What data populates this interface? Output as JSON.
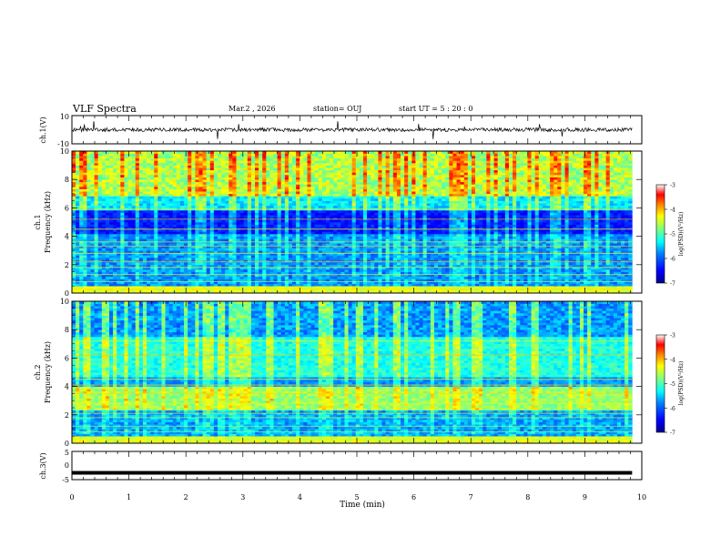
{
  "header": {
    "title": "VLF Spectra",
    "date": "Mar.2 , 2026",
    "station": "station= OUJ",
    "start": "start UT = 5 : 20 : 0"
  },
  "chart_data": [
    {
      "type": "line",
      "ylabel": "ch.1(V)",
      "yticks": [
        "10",
        "-10"
      ],
      "ylim": [
        -10,
        10
      ],
      "baseline": 0,
      "noise_amplitude": 1.3,
      "xlim": [
        0,
        10
      ]
    },
    {
      "type": "heatmap",
      "ylabel": "ch.1",
      "ylabel2": "Frequency (kHz)",
      "yticks": [
        "0",
        "2",
        "4",
        "6",
        "8",
        "10"
      ],
      "ylim": [
        0,
        10
      ],
      "xlim": [
        0,
        10
      ],
      "data_end_min": 9.83,
      "colorbar": {
        "label": "log(PSD)(V²/Hz)",
        "ticks": [
          "-3",
          "-4",
          "-5",
          "-6",
          "-7"
        ],
        "range": [
          -7,
          -3
        ]
      }
    },
    {
      "type": "heatmap",
      "ylabel": "ch.2",
      "ylabel2": "Frequency (kHz)",
      "yticks": [
        "0",
        "2",
        "4",
        "6",
        "8",
        "10"
      ],
      "ylim": [
        0,
        10
      ],
      "xlim": [
        0,
        10
      ],
      "data_end_min": 9.83,
      "colorbar": {
        "label": "log(PSD)(V²/Hz)",
        "ticks": [
          "-3",
          "-4",
          "-5",
          "-6",
          "-7"
        ],
        "range": [
          -7,
          -3
        ]
      }
    },
    {
      "type": "line",
      "ylabel": "ch.3(V)",
      "yticks": [
        "5",
        "0",
        "-5"
      ],
      "ylim": [
        -5,
        5
      ],
      "baseline": -2.6,
      "xlim": [
        0,
        10
      ],
      "xlabel": "Time (min)",
      "xticks": [
        "0",
        "1",
        "2",
        "3",
        "4",
        "5",
        "6",
        "7",
        "8",
        "9",
        "10"
      ]
    }
  ],
  "colors": {
    "trace": "#000000",
    "colormap": [
      "#00008f",
      "#0000ff",
      "#0080ff",
      "#00ffff",
      "#80ff80",
      "#ffff00",
      "#ff8000",
      "#ff0000",
      "#800000"
    ]
  }
}
